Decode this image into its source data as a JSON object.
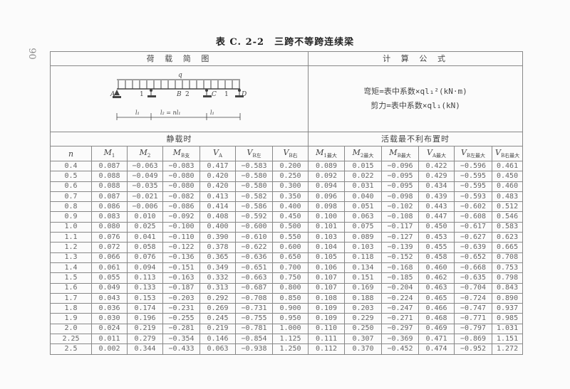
{
  "page_number": "90",
  "title": "表 C. 2-2　三跨不等跨连续梁",
  "headers": {
    "diagram": "荷 载 简 图",
    "formula": "计 算 公 式",
    "static": "静载时",
    "live": "活载最不利布置时"
  },
  "diagram": {
    "load": "q",
    "A": "A",
    "B": "B",
    "C": "C",
    "D": "D",
    "span1": "1",
    "span2": "2",
    "span3": "1",
    "l1_left": "l₁",
    "l2": "l₂ = nl₁",
    "l1_right": "l₁"
  },
  "formula": {
    "moment": "弯矩=表中系数×ql₁²(kN·m)",
    "shear": "剪力=表中系数×ql₁(kN)"
  },
  "columns": [
    {
      "main": "n",
      "sub": ""
    },
    {
      "main": "M",
      "sub": "1"
    },
    {
      "main": "M",
      "sub": "2"
    },
    {
      "main": "M",
      "sub": "B支"
    },
    {
      "main": "V",
      "sub": "A"
    },
    {
      "main": "V",
      "sub": "B左"
    },
    {
      "main": "V",
      "sub": "B右"
    },
    {
      "main": "M",
      "sub": "1最大"
    },
    {
      "main": "M",
      "sub": "2最大"
    },
    {
      "main": "M",
      "sub": "B最大"
    },
    {
      "main": "V",
      "sub": "A最大"
    },
    {
      "main": "V",
      "sub": "B左最大"
    },
    {
      "main": "V",
      "sub": "B右最大"
    }
  ],
  "rows": [
    [
      "0.4",
      "0.087",
      "−0.063",
      "−0.083",
      "0.417",
      "−0.583",
      "0.200",
      "0.089",
      "0.015",
      "−0.096",
      "0.422",
      "−0.596",
      "0.461"
    ],
    [
      "0.5",
      "0.088",
      "−0.049",
      "−0.080",
      "0.420",
      "−0.580",
      "0.250",
      "0.092",
      "0.022",
      "−0.095",
      "0.429",
      "−0.595",
      "0.450"
    ],
    [
      "0.6",
      "0.088",
      "−0.035",
      "−0.080",
      "0.420",
      "−0.580",
      "0.300",
      "0.094",
      "0.031",
      "−0.095",
      "0.434",
      "−0.595",
      "0.460"
    ],
    [
      "0.7",
      "0.087",
      "−0.021",
      "−0.082",
      "0.413",
      "−0.582",
      "0.350",
      "0.096",
      "0.040",
      "−0.098",
      "0.439",
      "−0.593",
      "0.483"
    ],
    [
      "0.8",
      "0.086",
      "−0.006",
      "−0.086",
      "0.414",
      "−0.586",
      "0.400",
      "0.098",
      "0.051",
      "−0.102",
      "0.443",
      "−0.602",
      "0.512"
    ],
    [
      "0.9",
      "0.083",
      "0.010",
      "−0.092",
      "0.408",
      "−0.592",
      "0.450",
      "0.100",
      "0.063",
      "−0.108",
      "0.447",
      "−0.608",
      "0.546"
    ],
    [
      "1.0",
      "0.080",
      "0.025",
      "−0.100",
      "0.400",
      "−0.600",
      "0.500",
      "0.101",
      "0.075",
      "−0.117",
      "0.450",
      "−0.617",
      "0.583"
    ],
    [
      "1.1",
      "0.076",
      "0.041",
      "−0.110",
      "0.390",
      "−0.610",
      "0.550",
      "0.103",
      "0.089",
      "−0.127",
      "0.453",
      "−0.627",
      "0.623"
    ],
    [
      "1.2",
      "0.072",
      "0.058",
      "−0.122",
      "0.378",
      "−0.622",
      "0.600",
      "0.104",
      "0.103",
      "−0.139",
      "0.455",
      "−0.639",
      "0.665"
    ],
    [
      "1.3",
      "0.066",
      "0.076",
      "−0.136",
      "0.365",
      "−0.636",
      "0.650",
      "0.105",
      "0.118",
      "−0.152",
      "0.458",
      "−0.652",
      "0.708"
    ],
    [
      "1.4",
      "0.061",
      "0.094",
      "−0.151",
      "0.349",
      "−0.651",
      "0.700",
      "0.106",
      "0.134",
      "−0.168",
      "0.460",
      "−0.668",
      "0.753"
    ],
    [
      "1.5",
      "0.055",
      "0.113",
      "−0.163",
      "0.332",
      "−0.663",
      "0.750",
      "0.107",
      "0.151",
      "−0.185",
      "0.462",
      "−0.635",
      "0.798"
    ],
    [
      "1.6",
      "0.049",
      "0.133",
      "−0.187",
      "0.313",
      "−0.687",
      "0.800",
      "0.107",
      "0.169",
      "−0.204",
      "0.463",
      "−0.704",
      "0.843"
    ],
    [
      "1.7",
      "0.043",
      "0.153",
      "−0.203",
      "0.292",
      "−0.708",
      "0.850",
      "0.108",
      "0.188",
      "−0.224",
      "0.465",
      "−0.724",
      "0.890"
    ],
    [
      "1.8",
      "0.036",
      "0.174",
      "−0.231",
      "0.269",
      "−0.731",
      "0.900",
      "0.109",
      "0.203",
      "−0.247",
      "0.466",
      "−0.747",
      "0.937"
    ],
    [
      "1.9",
      "0.030",
      "0.196",
      "−0.255",
      "0.245",
      "−0.755",
      "0.950",
      "0.109",
      "0.229",
      "−0.271",
      "0.468",
      "−0.771",
      "0.985"
    ],
    [
      "2.0",
      "0.024",
      "0.219",
      "−0.281",
      "0.219",
      "−0.781",
      "1.000",
      "0.110",
      "0.250",
      "−0.297",
      "0.469",
      "−0.797",
      "1.031"
    ],
    [
      "2.25",
      "0.011",
      "0.279",
      "−0.354",
      "0.146",
      "−0.854",
      "1.125",
      "0.111",
      "0.307",
      "−0.369",
      "0.471",
      "−0.869",
      "1.151"
    ],
    [
      "2.5",
      "0.002",
      "0.344",
      "−0.433",
      "0.063",
      "−0.938",
      "1.250",
      "0.112",
      "0.370",
      "−0.452",
      "0.474",
      "−0.952",
      "1.272"
    ]
  ]
}
